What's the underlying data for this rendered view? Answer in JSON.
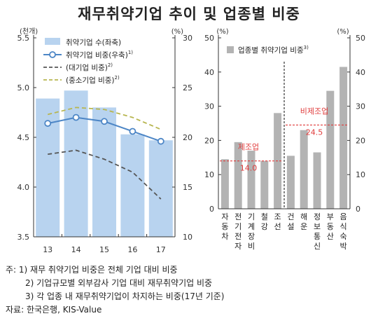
{
  "title": "재무취약기업 추이 및 업종별 비중",
  "left_chart": {
    "unit_left": "(천개)",
    "unit_right": "(%)",
    "legend": [
      {
        "label": "취약기업 수(좌축)",
        "sup": ""
      },
      {
        "label": "취약기업 비중(우축)",
        "sup": "1)"
      },
      {
        "label": "(대기업 비중)",
        "sup": "2)"
      },
      {
        "label": "(중소기업 비중)",
        "sup": "2)"
      }
    ]
  },
  "right_chart": {
    "unit_left": "(%)",
    "unit_right": "(%)",
    "legend": {
      "label": "업종별 취약기업 비중",
      "sup": "3)"
    },
    "annotations": [
      {
        "label": "제조업",
        "value": "14.0"
      },
      {
        "label": "비제조업",
        "value": "24.5"
      }
    ]
  },
  "chart_data": [
    {
      "type": "bar",
      "categories": [
        "13",
        "14",
        "15",
        "16",
        "17"
      ],
      "left_axis": {
        "ticks": [
          "3.5",
          "4.0",
          "4.5",
          "5.0",
          "5.5"
        ],
        "ylim": [
          3.5,
          5.5
        ]
      },
      "right_axis": {
        "ticks": [
          "10",
          "15",
          "20",
          "25",
          "30"
        ],
        "ylim": [
          10,
          30
        ]
      },
      "series": [
        {
          "name": "취약기업 수(좌축)",
          "type": "bar",
          "axis": "left",
          "values": [
            4.89,
            4.97,
            4.8,
            4.53,
            4.47
          ],
          "color": "#b8d3ef"
        },
        {
          "name": "취약기업 비중(우축)",
          "type": "line",
          "axis": "right",
          "markers": true,
          "values": [
            21.4,
            22.0,
            21.6,
            20.6,
            19.6
          ],
          "color": "#4d86c6"
        },
        {
          "name": "(대기업 비중)",
          "type": "line",
          "axis": "right",
          "dash": true,
          "values": [
            18.3,
            18.7,
            17.8,
            16.5,
            13.8
          ],
          "color": "#555555"
        },
        {
          "name": "(중소기업 비중)",
          "type": "line",
          "axis": "right",
          "dash": true,
          "values": [
            22.3,
            23.0,
            22.8,
            22.0,
            20.8
          ],
          "color": "#b8b650"
        }
      ],
      "grid": false,
      "legend_position": "top-left"
    },
    {
      "type": "bar",
      "categories": [
        "자동차",
        "전기전자",
        "기계장비",
        "철강",
        "조선",
        "건설",
        "해운",
        "정보통신",
        "부동산",
        "음식숙박"
      ],
      "values": [
        14.5,
        19.5,
        17.0,
        14.0,
        28.0,
        15.5,
        23.0,
        16.5,
        34.5,
        41.5
      ],
      "left_axis": {
        "ticks": [
          "0",
          "10",
          "20",
          "30",
          "40",
          "50"
        ],
        "ylim": [
          0,
          50
        ]
      },
      "right_axis": {
        "ticks": [
          "0",
          "10",
          "20",
          "30",
          "40",
          "50"
        ],
        "ylim": [
          0,
          50
        ]
      },
      "reference_lines": [
        {
          "label": "제조업",
          "value": 14.0,
          "applies_to": [
            "자동차",
            "전기전자",
            "기계장비",
            "철강",
            "조선"
          ]
        },
        {
          "label": "비제조업",
          "value": 24.5,
          "applies_to": [
            "건설",
            "해운",
            "정보통신",
            "부동산",
            "음식숙박"
          ]
        }
      ],
      "color": "#b3b3b3",
      "grid": false,
      "legend_position": "top"
    }
  ],
  "notes": [
    "주: 1) 재무 취약기업 비중은 전체 기업 대비 비중",
    "2) 기업규모별 외부감사 기업 대비 재무취약기업 비중",
    "3) 각 업종 내 재무취약기업이 차지하는 비중(17년 기준)",
    "자료: 한국은행, KIS-Value"
  ]
}
